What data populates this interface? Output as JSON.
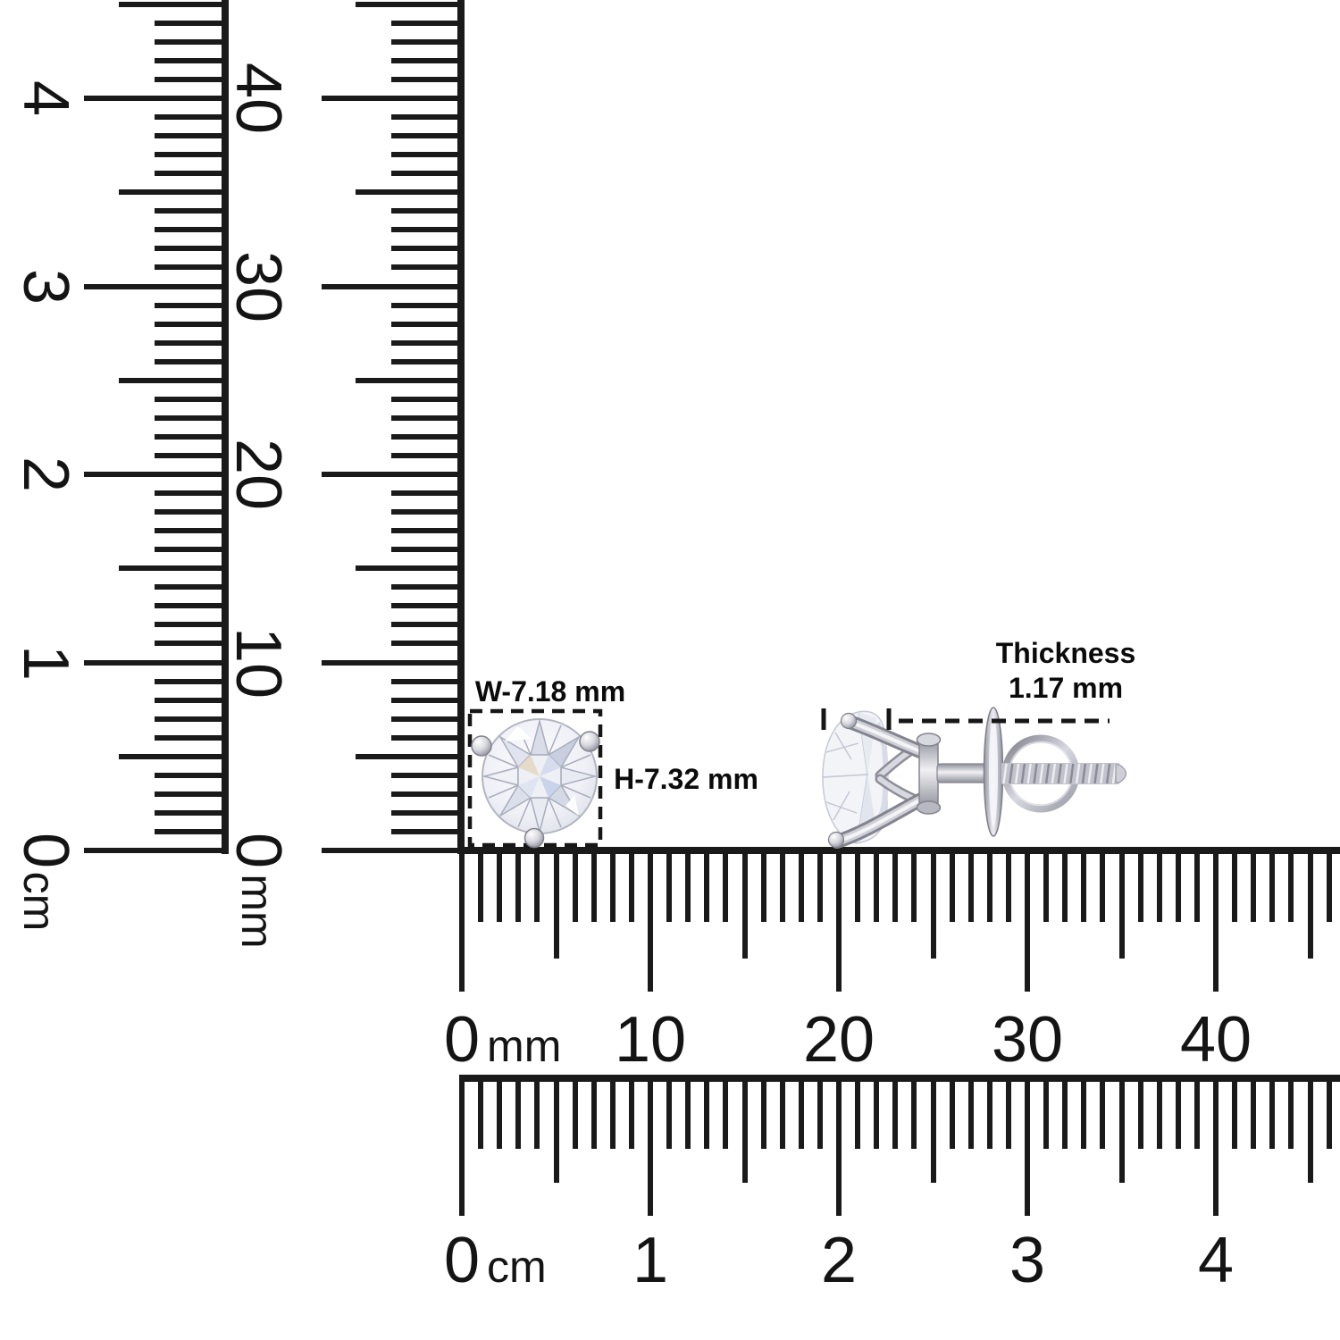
{
  "annotations": {
    "width": "W-7.18 mm",
    "height": "H-7.32 mm",
    "thickness_title": "Thickness",
    "thickness_value": "1.17 mm"
  },
  "rulers": {
    "vertical_cm": {
      "numbers": [
        "0",
        "1",
        "2",
        "3",
        "4"
      ],
      "unit": "cm"
    },
    "vertical_mm": {
      "numbers": [
        "0",
        "10",
        "20",
        "30",
        "40"
      ],
      "unit": "mm"
    },
    "horizontal_mm": {
      "numbers": [
        "0",
        "10",
        "20",
        "30",
        "40"
      ],
      "unit": "mm"
    },
    "horizontal_cm": {
      "numbers": [
        "0",
        "1",
        "2",
        "3",
        "4"
      ],
      "unit": "cm"
    }
  },
  "objects": {
    "front_view": "round-brilliant-diamond-stud-front-view-three-prong",
    "side_view": "diamond-stud-side-view-with-screw-back-post-disc-and-wire-loop"
  },
  "colors": {
    "ink": "#1a1a1a",
    "label_text": "#0b0b0b",
    "background": "#ffffff",
    "metal_light": "#f2f2f6",
    "metal_mid": "#c6c6d0",
    "metal_dark": "#8e8e9a",
    "stone_tint_blue": "#c9d4ea",
    "stone_tint_warm": "#e5dbc9"
  }
}
